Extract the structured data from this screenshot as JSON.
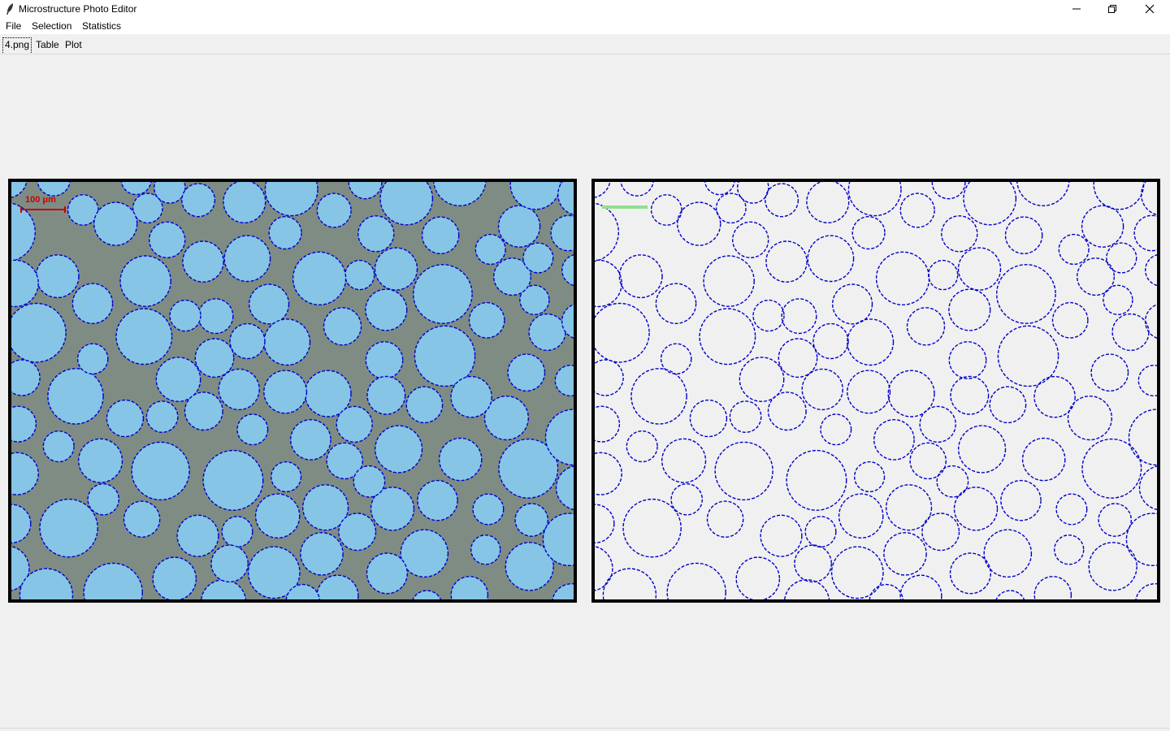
{
  "window": {
    "title": "Microstructure Photo Editor"
  },
  "menu": [
    {
      "label": "File"
    },
    {
      "label": "Selection"
    },
    {
      "label": "Statistics"
    }
  ],
  "tabs": [
    {
      "label": "4.png",
      "active": true
    },
    {
      "label": "Table",
      "active": false
    },
    {
      "label": "Plot",
      "active": false
    }
  ],
  "image_panel": {
    "scale_bar_label": "100 μm",
    "scale_bar_color": "#cc0000",
    "circle_fill": "#86c5e6",
    "background_color": "#7f8c84",
    "outline_color": "#0000cc"
  },
  "mask_panel": {
    "background_color": "#f0f0f0",
    "outline_color": "#0000cc",
    "scale_bar_color": "#90e090"
  }
}
